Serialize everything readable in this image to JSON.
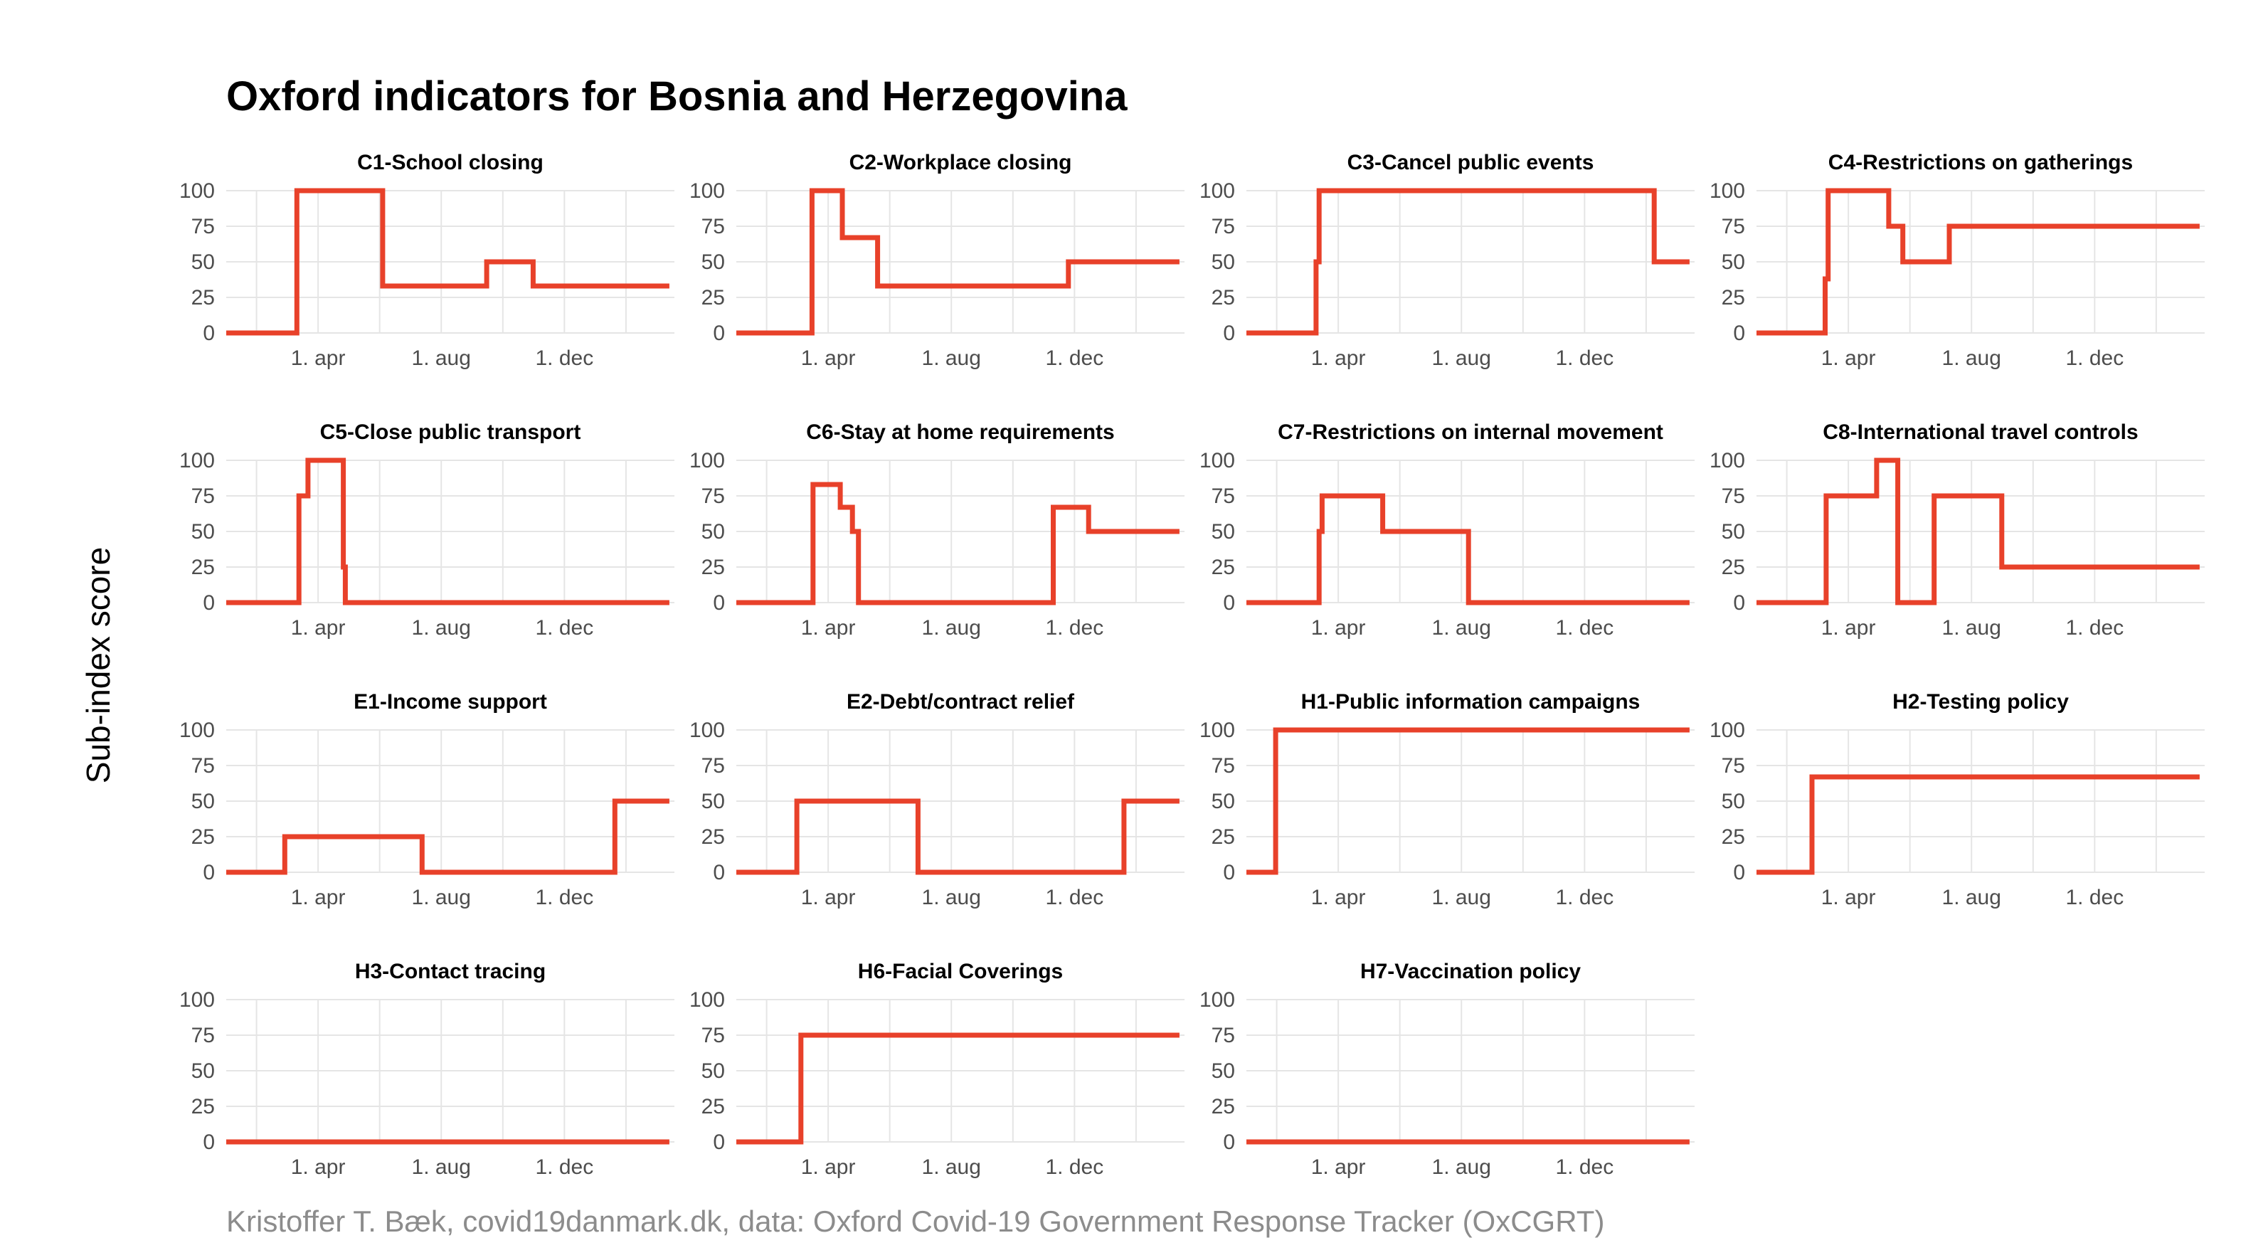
{
  "title": "Oxford indicators for Bosnia and Herzegovina",
  "ylabel": "Sub-index score",
  "caption": "Kristoffer T. Bæk, covid19danmark.dk, data: Oxford Covid-19 Government Response Tracker (OxCGRT)",
  "colors": {
    "line": "#e8412a",
    "grid": "#e5e5e5",
    "tick": "#4d4d4d"
  },
  "chart_data": [
    {
      "type": "line",
      "title": "C1-School closing",
      "x_ticks": [
        "1. apr",
        "1. aug",
        "1. dec"
      ],
      "y_ticks": [
        0,
        25,
        50,
        75,
        100
      ],
      "ylim": [
        0,
        100
      ],
      "xlim": [
        "2020-01-01",
        "2021-03-20"
      ],
      "series": [
        {
          "x": [
            "2020-01-01",
            "2020-03-11",
            "2020-06-04",
            "2020-09-15",
            "2020-10-31",
            "2021-03-15"
          ],
          "values": [
            0,
            100,
            33,
            50,
            33,
            33
          ]
        }
      ]
    },
    {
      "type": "line",
      "title": "C2-Workplace closing",
      "x_ticks": [
        "1. apr",
        "1. aug",
        "1. dec"
      ],
      "y_ticks": [
        0,
        25,
        50,
        75,
        100
      ],
      "ylim": [
        0,
        100
      ],
      "xlim": [
        "2020-01-01",
        "2021-03-20"
      ],
      "series": [
        {
          "x": [
            "2020-01-01",
            "2020-03-16",
            "2020-04-15",
            "2020-05-20",
            "2020-11-25",
            "2021-03-15"
          ],
          "values": [
            0,
            100,
            67,
            33,
            50,
            50
          ]
        }
      ]
    },
    {
      "type": "line",
      "title": "C3-Cancel public events",
      "x_ticks": [
        "1. apr",
        "1. aug",
        "1. dec"
      ],
      "y_ticks": [
        0,
        25,
        50,
        75,
        100
      ],
      "ylim": [
        0,
        100
      ],
      "xlim": [
        "2020-01-01",
        "2021-03-20"
      ],
      "series": [
        {
          "x": [
            "2020-01-01",
            "2020-03-10",
            "2020-03-13",
            "2021-02-08",
            "2021-03-15"
          ],
          "values": [
            0,
            50,
            100,
            50,
            50
          ]
        }
      ]
    },
    {
      "type": "line",
      "title": "C4-Restrictions on gatherings",
      "x_ticks": [
        "1. apr",
        "1. aug",
        "1. dec"
      ],
      "y_ticks": [
        0,
        25,
        50,
        75,
        100
      ],
      "ylim": [
        0,
        100
      ],
      "xlim": [
        "2020-01-01",
        "2021-03-20"
      ],
      "series": [
        {
          "x": [
            "2020-01-01",
            "2020-03-09",
            "2020-03-12",
            "2020-05-11",
            "2020-05-25",
            "2020-07-10",
            "2021-03-15"
          ],
          "values": [
            0,
            38,
            100,
            75,
            50,
            75,
            75
          ]
        }
      ]
    },
    {
      "type": "line",
      "title": "C5-Close public transport",
      "x_ticks": [
        "1. apr",
        "1. aug",
        "1. dec"
      ],
      "y_ticks": [
        0,
        25,
        50,
        75,
        100
      ],
      "ylim": [
        0,
        100
      ],
      "xlim": [
        "2020-01-01",
        "2021-03-20"
      ],
      "series": [
        {
          "x": [
            "2020-01-01",
            "2020-03-13",
            "2020-03-21",
            "2020-03-22",
            "2020-04-26",
            "2020-04-28",
            "2021-03-15"
          ],
          "values": [
            0,
            75,
            75,
            100,
            25,
            0,
            0
          ]
        }
      ]
    },
    {
      "type": "line",
      "title": "C6-Stay at home requirements",
      "x_ticks": [
        "1. apr",
        "1. aug",
        "1. dec"
      ],
      "y_ticks": [
        0,
        25,
        50,
        75,
        100
      ],
      "ylim": [
        0,
        100
      ],
      "xlim": [
        "2020-01-01",
        "2021-03-20"
      ],
      "series": [
        {
          "x": [
            "2020-01-01",
            "2020-03-17",
            "2020-04-13",
            "2020-04-25",
            "2020-05-01",
            "2020-11-10",
            "2020-12-15",
            "2021-03-15"
          ],
          "values": [
            0,
            83,
            67,
            50,
            0,
            67,
            50,
            50
          ]
        }
      ]
    },
    {
      "type": "line",
      "title": "C7-Restrictions on internal movement",
      "x_ticks": [
        "1. apr",
        "1. aug",
        "1. dec"
      ],
      "y_ticks": [
        0,
        25,
        50,
        75,
        100
      ],
      "ylim": [
        0,
        100
      ],
      "xlim": [
        "2020-01-01",
        "2021-03-20"
      ],
      "series": [
        {
          "x": [
            "2020-01-01",
            "2020-03-13",
            "2020-03-16",
            "2020-05-15",
            "2020-08-08",
            "2021-03-15"
          ],
          "values": [
            0,
            50,
            75,
            50,
            0,
            0
          ]
        }
      ]
    },
    {
      "type": "line",
      "title": "C8-International travel controls",
      "x_ticks": [
        "1. apr",
        "1. aug",
        "1. dec"
      ],
      "y_ticks": [
        0,
        25,
        50,
        75,
        100
      ],
      "ylim": [
        0,
        100
      ],
      "xlim": [
        "2020-01-01",
        "2021-03-20"
      ],
      "series": [
        {
          "x": [
            "2020-01-01",
            "2020-03-10",
            "2020-04-29",
            "2020-05-20",
            "2020-06-25",
            "2020-08-31",
            "2021-03-15"
          ],
          "values": [
            0,
            75,
            100,
            0,
            75,
            25,
            25
          ]
        }
      ]
    },
    {
      "type": "line",
      "title": "E1-Income support",
      "x_ticks": [
        "1. apr",
        "1. aug",
        "1. dec"
      ],
      "y_ticks": [
        0,
        25,
        50,
        75,
        100
      ],
      "ylim": [
        0,
        100
      ],
      "xlim": [
        "2020-01-01",
        "2021-03-20"
      ],
      "series": [
        {
          "x": [
            "2020-01-01",
            "2020-02-28",
            "2020-07-13",
            "2021-01-20",
            "2021-03-15"
          ],
          "values": [
            0,
            25,
            0,
            50,
            50
          ]
        }
      ]
    },
    {
      "type": "line",
      "title": "E2-Debt/contract relief",
      "x_ticks": [
        "1. apr",
        "1. aug",
        "1. dec"
      ],
      "y_ticks": [
        0,
        25,
        50,
        75,
        100
      ],
      "ylim": [
        0,
        100
      ],
      "xlim": [
        "2020-01-01",
        "2021-03-20"
      ],
      "series": [
        {
          "x": [
            "2020-01-01",
            "2020-03-01",
            "2020-06-29",
            "2021-01-19",
            "2021-03-15"
          ],
          "values": [
            0,
            50,
            0,
            50,
            50
          ]
        }
      ]
    },
    {
      "type": "line",
      "title": "H1-Public information campaigns",
      "x_ticks": [
        "1. apr",
        "1. aug",
        "1. dec"
      ],
      "y_ticks": [
        0,
        25,
        50,
        75,
        100
      ],
      "ylim": [
        0,
        100
      ],
      "xlim": [
        "2020-01-01",
        "2021-03-20"
      ],
      "series": [
        {
          "x": [
            "2020-01-01",
            "2020-01-30",
            "2021-03-15"
          ],
          "values": [
            0,
            100,
            100
          ]
        }
      ]
    },
    {
      "type": "line",
      "title": "H2-Testing policy",
      "x_ticks": [
        "1. apr",
        "1. aug",
        "1. dec"
      ],
      "y_ticks": [
        0,
        25,
        50,
        75,
        100
      ],
      "ylim": [
        0,
        100
      ],
      "xlim": [
        "2020-01-01",
        "2021-03-20"
      ],
      "series": [
        {
          "x": [
            "2020-01-01",
            "2020-02-25",
            "2021-03-15"
          ],
          "values": [
            0,
            67,
            67
          ]
        }
      ]
    },
    {
      "type": "line",
      "title": "H3-Contact tracing",
      "x_ticks": [
        "1. apr",
        "1. aug",
        "1. dec"
      ],
      "y_ticks": [
        0,
        25,
        50,
        75,
        100
      ],
      "ylim": [
        0,
        100
      ],
      "xlim": [
        "2020-01-01",
        "2021-03-20"
      ],
      "series": [
        {
          "x": [
            "2020-01-01",
            "2021-03-15"
          ],
          "values": [
            0,
            0
          ]
        }
      ]
    },
    {
      "type": "line",
      "title": "H6-Facial Coverings",
      "x_ticks": [
        "1. apr",
        "1. aug",
        "1. dec"
      ],
      "y_ticks": [
        0,
        25,
        50,
        75,
        100
      ],
      "ylim": [
        0,
        100
      ],
      "xlim": [
        "2020-01-01",
        "2021-03-20"
      ],
      "series": [
        {
          "x": [
            "2020-01-01",
            "2020-03-05",
            "2021-03-15"
          ],
          "values": [
            0,
            75,
            75
          ]
        }
      ]
    },
    {
      "type": "line",
      "title": "H7-Vaccination policy",
      "x_ticks": [
        "1. apr",
        "1. aug",
        "1. dec"
      ],
      "y_ticks": [
        0,
        25,
        50,
        75,
        100
      ],
      "ylim": [
        0,
        100
      ],
      "xlim": [
        "2020-01-01",
        "2021-03-20"
      ],
      "series": [
        {
          "x": [
            "2020-01-01",
            "2021-03-15"
          ],
          "values": [
            0,
            0
          ]
        }
      ]
    }
  ]
}
